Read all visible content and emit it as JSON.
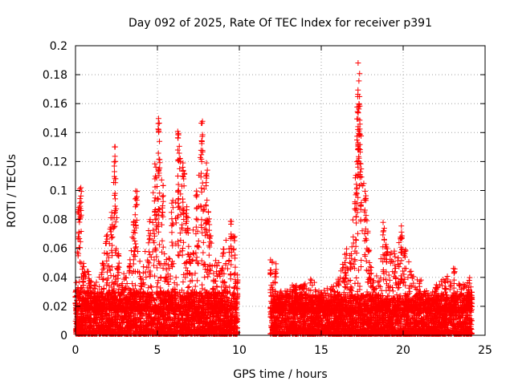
{
  "chart_data": {
    "type": "scatter",
    "title": "Day 092 of 2025, Rate Of TEC Index for receiver p391",
    "xlabel": "GPS time / hours",
    "ylabel": "ROTI / TECUs",
    "xlim": [
      0,
      25
    ],
    "ylim": [
      0,
      0.2
    ],
    "xticks": [
      0,
      5,
      10,
      15,
      20,
      25
    ],
    "yticks": [
      0,
      0.02,
      0.04,
      0.06,
      0.08,
      0.1,
      0.12,
      0.14,
      0.16,
      0.18,
      0.2
    ],
    "xtick_labels": [
      "0",
      "5",
      "10",
      "15",
      "20",
      "25"
    ],
    "ytick_labels": [
      "0",
      "0.02",
      "0.04",
      "0.06",
      "0.08",
      "0.1",
      "0.12",
      "0.14",
      "0.16",
      "0.18",
      "0.2"
    ],
    "grid": true,
    "marker": "+",
    "color": "#ff0000",
    "data_gap_hours": [
      9.9,
      11.9
    ],
    "series": [
      {
        "name": "ROTI",
        "segments": [
          {
            "x_range": [
              0.0,
              9.9
            ],
            "baseline": [
              0.0,
              0.03
            ],
            "envelope": [
              [
                0.0,
                0.03
              ],
              [
                0.2,
                0.09
              ],
              [
                0.3,
                0.103
              ],
              [
                0.5,
                0.05
              ],
              [
                0.8,
                0.045
              ],
              [
                1.2,
                0.035
              ],
              [
                1.7,
                0.05
              ],
              [
                1.9,
                0.07
              ],
              [
                2.2,
                0.085
              ],
              [
                2.4,
                0.131
              ],
              [
                2.6,
                0.06
              ],
              [
                3.0,
                0.04
              ],
              [
                3.3,
                0.05
              ],
              [
                3.6,
                0.085
              ],
              [
                3.7,
                0.1
              ],
              [
                4.0,
                0.04
              ],
              [
                4.5,
                0.08
              ],
              [
                4.9,
                0.12
              ],
              [
                5.1,
                0.15
              ],
              [
                5.3,
                0.11
              ],
              [
                5.6,
                0.055
              ],
              [
                5.9,
                0.095
              ],
              [
                6.3,
                0.142
              ],
              [
                6.6,
                0.12
              ],
              [
                6.8,
                0.09
              ],
              [
                7.0,
                0.06
              ],
              [
                7.4,
                0.1
              ],
              [
                7.7,
                0.149
              ],
              [
                8.0,
                0.12
              ],
              [
                8.2,
                0.07
              ],
              [
                8.6,
                0.05
              ],
              [
                9.0,
                0.06
              ],
              [
                9.5,
                0.085
              ],
              [
                9.7,
                0.07
              ],
              [
                9.9,
                0.04
              ]
            ]
          },
          {
            "x_range": [
              11.9,
              24.2
            ],
            "baseline": [
              0.0,
              0.028
            ],
            "envelope": [
              [
                11.9,
                0.06
              ],
              [
                12.2,
                0.05
              ],
              [
                12.6,
                0.03
              ],
              [
                13.2,
                0.035
              ],
              [
                13.8,
                0.035
              ],
              [
                14.4,
                0.04
              ],
              [
                15.0,
                0.03
              ],
              [
                15.6,
                0.035
              ],
              [
                16.1,
                0.04
              ],
              [
                16.5,
                0.06
              ],
              [
                16.8,
                0.06
              ],
              [
                17.1,
                0.11
              ],
              [
                17.2,
                0.167
              ],
              [
                17.3,
                0.191
              ],
              [
                17.4,
                0.14
              ],
              [
                17.7,
                0.098
              ],
              [
                18.0,
                0.05
              ],
              [
                18.5,
                0.04
              ],
              [
                18.8,
                0.078
              ],
              [
                19.0,
                0.065
              ],
              [
                19.5,
                0.06
              ],
              [
                19.9,
                0.077
              ],
              [
                20.1,
                0.062
              ],
              [
                20.5,
                0.045
              ],
              [
                21.0,
                0.04
              ],
              [
                21.5,
                0.03
              ],
              [
                22.0,
                0.035
              ],
              [
                22.6,
                0.04
              ],
              [
                23.1,
                0.05
              ],
              [
                23.5,
                0.035
              ],
              [
                24.0,
                0.04
              ],
              [
                24.2,
                0.03
              ]
            ]
          }
        ]
      }
    ]
  }
}
